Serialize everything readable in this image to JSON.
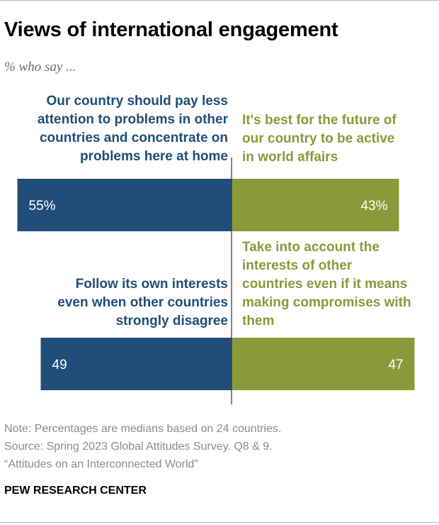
{
  "title": "Views of international engagement",
  "subtitle": "% who say ...",
  "colors": {
    "left": "#1f4e79",
    "right": "#8a9a3a",
    "axis": "#333333"
  },
  "chart_data": {
    "type": "bar",
    "orientation": "diverging-horizontal",
    "unit": "%",
    "xlim": [
      0,
      100
    ],
    "rows": [
      {
        "left_label": [
          "Our country should pay less",
          "attention to problems in other",
          "countries and concentrate on",
          "problems here at home"
        ],
        "right_label": [
          "It's best for the future of",
          "our country to be active",
          "in world affairs"
        ],
        "left_value": 55,
        "right_value": 43,
        "left_text": "55%",
        "right_text": "43%"
      },
      {
        "left_label": [
          "Follow its own interests",
          "even when other countries",
          "strongly disagree"
        ],
        "right_label": [
          "Take into account the",
          "interests of other",
          "countries even if it means",
          "making compromises with",
          "them"
        ],
        "left_value": 49,
        "right_value": 47,
        "left_text": "49",
        "right_text": "47"
      }
    ]
  },
  "footer": {
    "note": "Note: Percentages are medians based on 24 countries.",
    "source": "Source: Spring 2023 Global Attitudes Survey. Q8 & 9.",
    "report": "“Attitudes on an Interconnected World”",
    "brand": "PEW RESEARCH CENTER"
  }
}
